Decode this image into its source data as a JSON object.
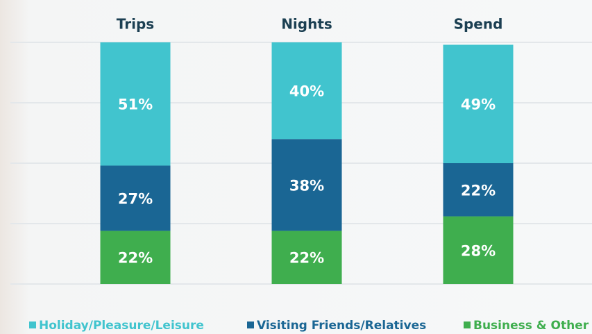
{
  "chart_data": {
    "type": "stacked-bar",
    "categories": [
      "Trips",
      "Nights",
      "Spend"
    ],
    "series": [
      {
        "name": "Holiday/Pleasure/Leisure",
        "color": "#41c4ce",
        "values": [
          51,
          40,
          49
        ],
        "value_labels": [
          "51%",
          "40%",
          "49%"
        ]
      },
      {
        "name": "Visiting Friends/Relatives",
        "color": "#1a6694",
        "values": [
          27,
          38,
          22
        ],
        "value_labels": [
          "27%",
          "38%",
          "22%"
        ]
      },
      {
        "name": "Business & Other",
        "color": "#3fae4e",
        "values": [
          22,
          22,
          28
        ],
        "value_labels": [
          "22%",
          "22%",
          "28%"
        ]
      }
    ],
    "ylim": [
      0,
      100
    ],
    "yticks": [
      0,
      25,
      50,
      75,
      100
    ],
    "grid": true
  }
}
